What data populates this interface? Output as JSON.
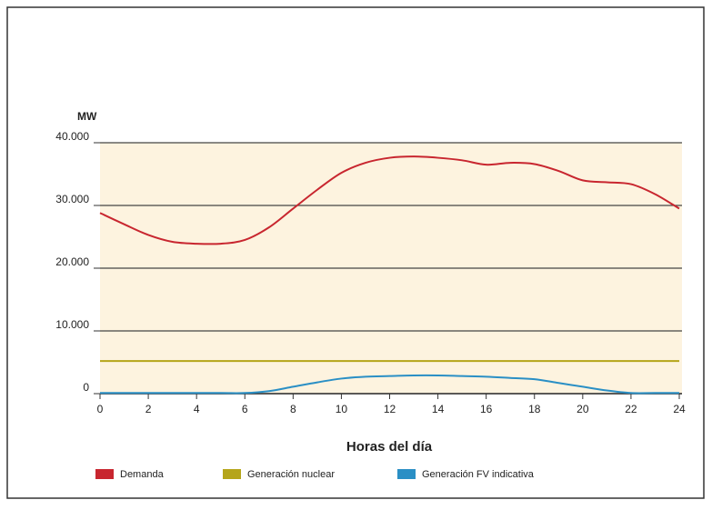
{
  "chart_data": {
    "type": "line",
    "y_label": "MW",
    "x_label": "Horas del día",
    "x": [
      0,
      1,
      2,
      3,
      4,
      5,
      6,
      7,
      8,
      9,
      10,
      11,
      12,
      13,
      14,
      15,
      16,
      17,
      18,
      19,
      20,
      21,
      22,
      23,
      24
    ],
    "series": [
      {
        "name": "Demanda",
        "color": "#c8262f",
        "values": [
          28800,
          27000,
          25300,
          24200,
          23900,
          23900,
          24500,
          26500,
          29500,
          32500,
          35200,
          36800,
          37600,
          37800,
          37600,
          37200,
          36500,
          36800,
          36600,
          35500,
          34000,
          33700,
          33400,
          31800,
          29500
        ]
      },
      {
        "name": "Generación nuclear",
        "color": "#b5a51a",
        "values": [
          5200,
          5200,
          5200,
          5200,
          5200,
          5200,
          5200,
          5200,
          5200,
          5200,
          5200,
          5200,
          5200,
          5200,
          5200,
          5200,
          5200,
          5200,
          5200,
          5200,
          5200,
          5200,
          5200,
          5200,
          5200
        ]
      },
      {
        "name": "Generación FV indicativa",
        "color": "#2a8fc5",
        "values": [
          100,
          100,
          100,
          100,
          100,
          100,
          100,
          400,
          1100,
          1800,
          2400,
          2700,
          2800,
          2900,
          2900,
          2800,
          2700,
          2500,
          2300,
          1700,
          1100,
          500,
          100,
          100,
          100
        ]
      }
    ],
    "xlim": [
      0,
      24
    ],
    "xticks": [
      0,
      2,
      4,
      6,
      8,
      10,
      12,
      14,
      16,
      18,
      20,
      22,
      24
    ],
    "ylim": [
      0,
      40000
    ],
    "yticks": [
      0,
      {
        "value": 10000,
        "label": "10.000"
      },
      {
        "value": 20000,
        "label": "20.000"
      },
      {
        "value": 30000,
        "label": "30.000"
      },
      {
        "value": 40000,
        "label": "40.000"
      }
    ],
    "grid": true,
    "background": "#fdf3df"
  }
}
